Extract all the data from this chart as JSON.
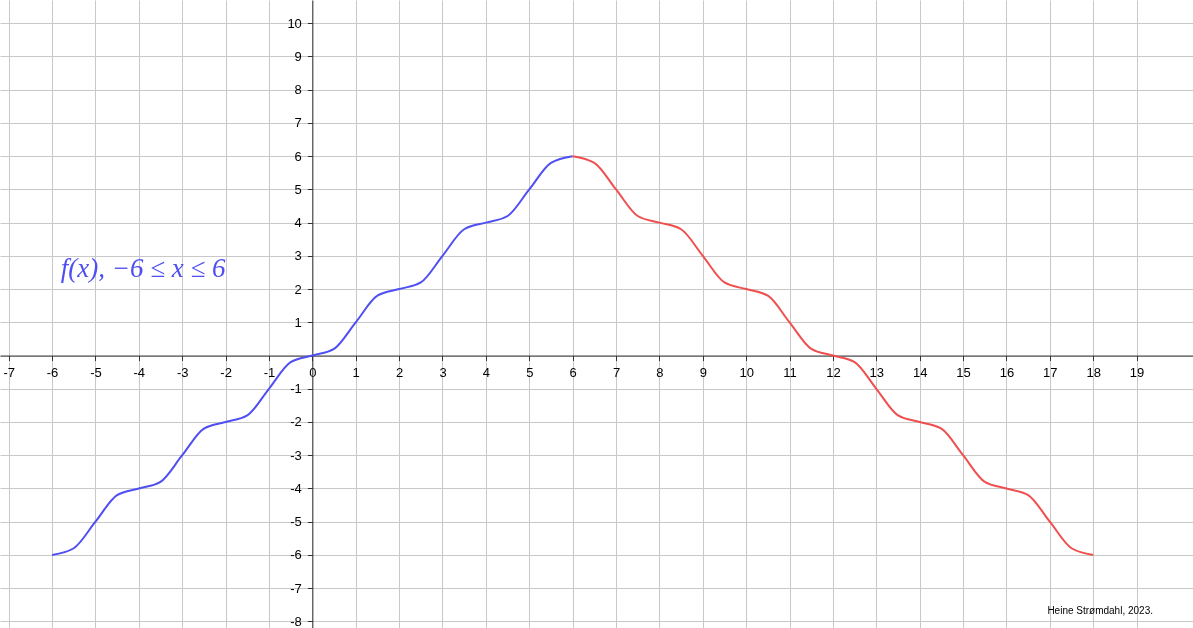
{
  "chart_data": {
    "type": "line",
    "annotations": [
      "Heine Strømdahl, 2023."
    ],
    "xlim": [
      -7.2,
      20.3
    ],
    "ylim": [
      -8.2,
      10.7
    ],
    "xticks": [
      -7,
      -6,
      -5,
      -4,
      -3,
      -2,
      -1,
      0,
      1,
      2,
      3,
      4,
      5,
      6,
      7,
      8,
      9,
      10,
      11,
      12,
      13,
      14,
      15,
      16,
      17,
      18,
      19
    ],
    "yticks": [
      -8,
      -7,
      -6,
      -5,
      -4,
      -3,
      -2,
      -1,
      {
        "value": 0,
        "label": null
      },
      1,
      2,
      3,
      4,
      5,
      6,
      7,
      8,
      9,
      10
    ],
    "grid": true,
    "marker": "none",
    "line_style": "solid",
    "series": [
      {
        "name": "f(x), −6 ≤ x ≤ 6",
        "color": "#4f4ff2",
        "x": [
          -6,
          -5.5,
          -5,
          -4.5,
          -4,
          -3.5,
          -3,
          -2.5,
          -2,
          -1.5,
          -1,
          -0.5,
          0,
          0.5,
          1,
          1.5,
          2,
          2.5,
          3,
          3.5,
          4,
          4.5,
          5,
          5.5,
          6
        ],
        "values": [
          -6,
          -5.8,
          -5,
          -4.2,
          -4,
          -3.8,
          -3,
          -2.2,
          -2,
          -1.8,
          -1,
          -0.2,
          0,
          0.2,
          1,
          1.8,
          2,
          2.2,
          3,
          3.8,
          4,
          4.2,
          5,
          5.8,
          6
        ]
      },
      {
        "color": "#f04f4f",
        "x": [
          6,
          6.5,
          7,
          7.5,
          8,
          8.5,
          9,
          9.5,
          10,
          10.5,
          11,
          11.5,
          12,
          12.5,
          13,
          13.5,
          14,
          14.5,
          15,
          15.5,
          16,
          16.5,
          17,
          17.5,
          18
        ],
        "values": [
          6,
          5.8,
          5,
          4.2,
          4,
          3.8,
          3,
          2.2,
          2,
          1.8,
          1,
          0.2,
          0,
          -0.2,
          -1,
          -1.8,
          -2,
          -2.2,
          -3,
          -3.8,
          -4,
          -4.2,
          -5,
          -5.8,
          -6
        ]
      }
    ]
  }
}
